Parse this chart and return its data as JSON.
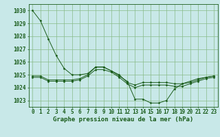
{
  "title": "Graphe pression niveau de la mer (hPa)",
  "background_color": "#c8e8e8",
  "grid_color": "#88bb88",
  "line_color": "#1a5c1a",
  "marker_color": "#1a5c1a",
  "xlim": [
    -0.5,
    23.5
  ],
  "ylim": [
    1022.5,
    1030.5
  ],
  "yticks": [
    1023,
    1024,
    1025,
    1026,
    1027,
    1028,
    1029,
    1030
  ],
  "xticks": [
    0,
    1,
    2,
    3,
    4,
    5,
    6,
    7,
    8,
    9,
    10,
    11,
    12,
    13,
    14,
    15,
    16,
    17,
    18,
    19,
    20,
    21,
    22,
    23
  ],
  "series": [
    [
      1030.0,
      1029.2,
      1027.8,
      1026.5,
      1025.5,
      1025.0,
      1025.0,
      1025.1,
      1025.6,
      1025.6,
      1025.3,
      1024.9,
      1024.5,
      1023.1,
      1023.1,
      1022.8,
      1022.8,
      1023.0,
      1023.9,
      1024.3,
      1024.5,
      1024.7,
      1024.8,
      1024.9
    ],
    [
      1024.9,
      1024.9,
      1024.6,
      1024.6,
      1024.6,
      1024.6,
      1024.7,
      1025.0,
      1025.6,
      1025.6,
      1025.3,
      1025.0,
      1024.4,
      1024.2,
      1024.4,
      1024.4,
      1024.4,
      1024.4,
      1024.3,
      1024.3,
      1024.4,
      1024.6,
      1024.8,
      1024.9
    ],
    [
      1024.8,
      1024.8,
      1024.5,
      1024.5,
      1024.5,
      1024.5,
      1024.6,
      1024.9,
      1025.4,
      1025.4,
      1025.2,
      1024.8,
      1024.3,
      1024.0,
      1024.2,
      1024.2,
      1024.2,
      1024.2,
      1024.1,
      1024.1,
      1024.3,
      1024.5,
      1024.7,
      1024.8
    ]
  ],
  "tick_fontsize": 5.5,
  "xlabel_fontsize": 6.5
}
